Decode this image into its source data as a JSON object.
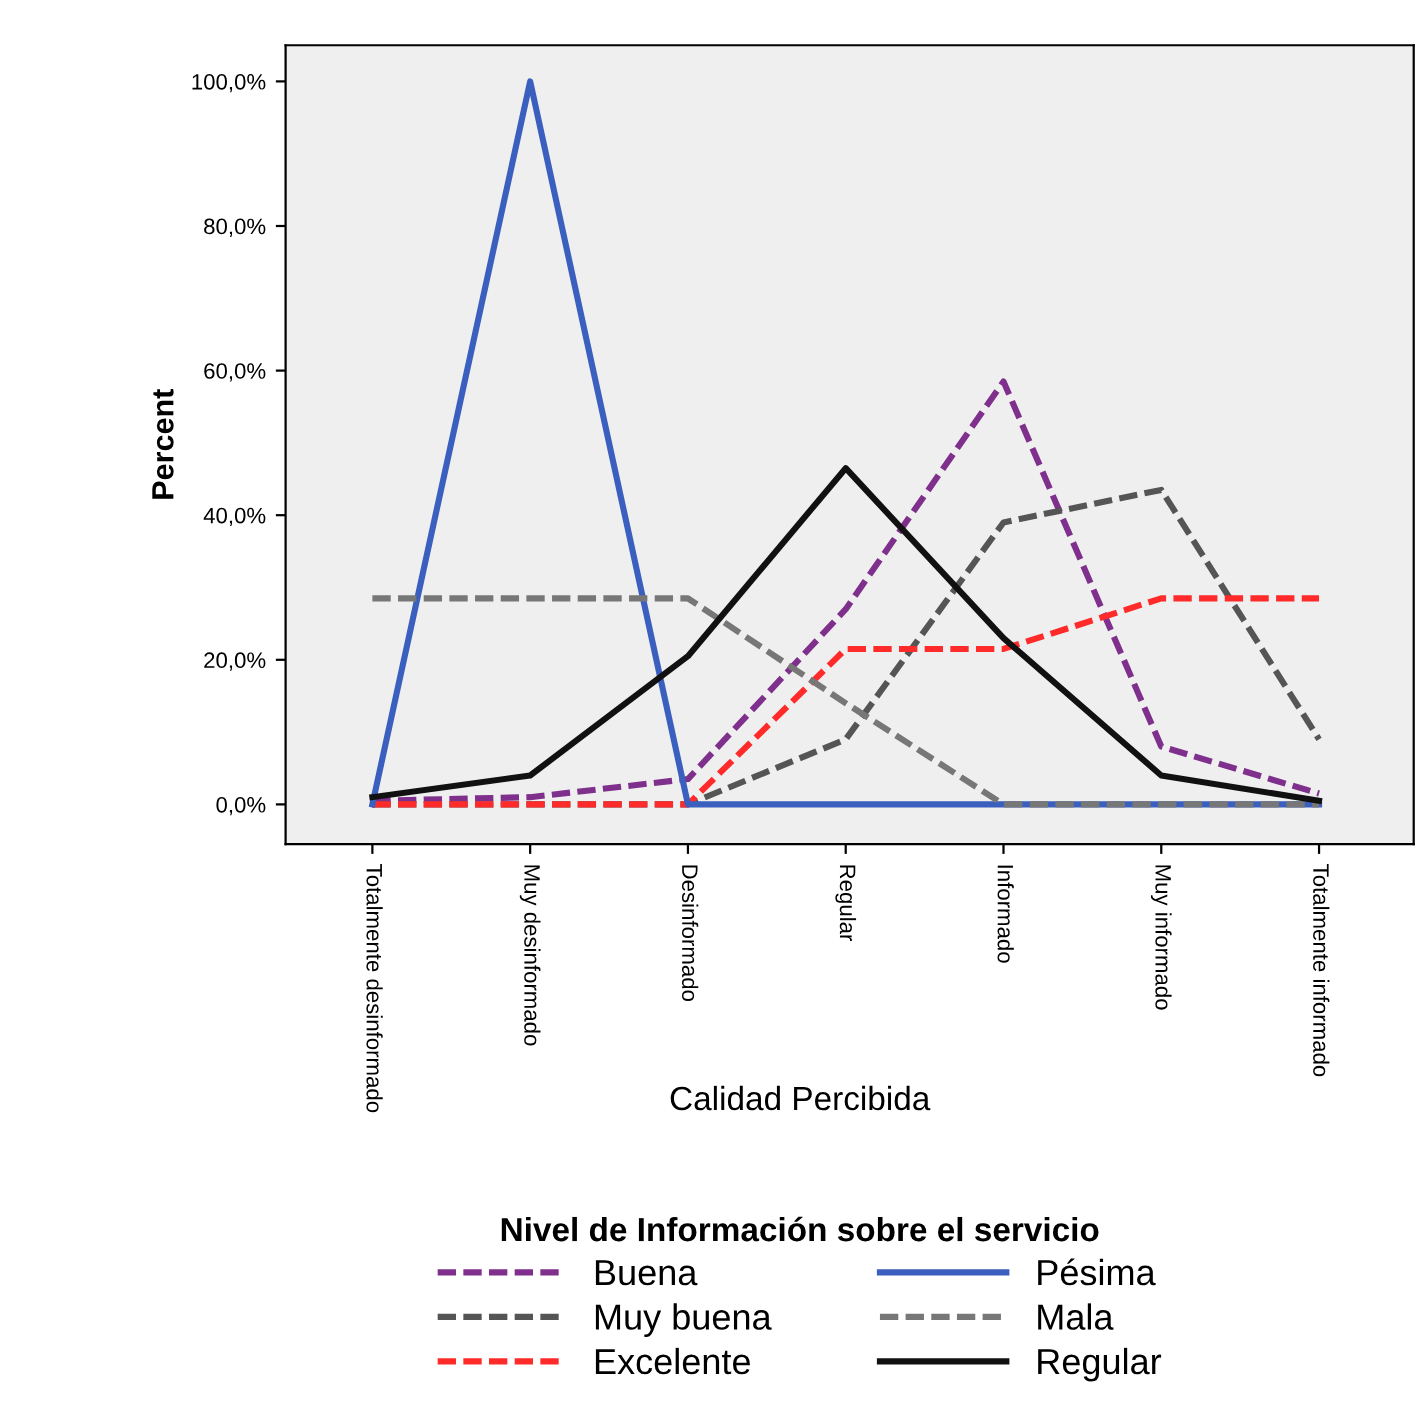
{
  "chart_data": {
    "type": "line",
    "xlabel": "Calidad Percibida",
    "ylabel": "Percent",
    "legend_title": "Nivel de Información sobre el servicio",
    "categories": [
      "Totalmente desinformado",
      "Muy desinformado",
      "Desinformado",
      "Regular",
      "Informado",
      "Muy informado",
      "Totalmente informado"
    ],
    "series": [
      {
        "name": "Buena",
        "color": "#7f2f8c",
        "line_style": "dashed",
        "values": [
          0.5,
          1,
          3.5,
          27,
          58.5,
          8,
          1.5
        ]
      },
      {
        "name": "Muy buena",
        "color": "#555555",
        "line_style": "dashed",
        "values": [
          0,
          0,
          0,
          9,
          39,
          43.5,
          9
        ]
      },
      {
        "name": "Excelente",
        "color": "#ff2a2a",
        "line_style": "dashed",
        "values": [
          0,
          0,
          0,
          21.5,
          21.5,
          28.5,
          28.5
        ]
      },
      {
        "name": "Pésima",
        "color": "#3a5fbf",
        "line_style": "solid",
        "values": [
          0,
          100,
          0,
          0,
          0,
          0,
          0
        ]
      },
      {
        "name": "Mala",
        "color": "#777777",
        "line_style": "dashed",
        "values": [
          28.5,
          28.5,
          28.5,
          14,
          0,
          0,
          0
        ]
      },
      {
        "name": "Regular",
        "color": "#111111",
        "line_style": "solid",
        "values": [
          1,
          4,
          20.5,
          46.5,
          23,
          4,
          0.5
        ]
      }
    ],
    "ylim": [
      -5.5,
      105
    ],
    "yticks": [
      {
        "value": 0,
        "label": "0,0%"
      },
      {
        "value": 20,
        "label": "20,0%"
      },
      {
        "value": 40,
        "label": "40,0%"
      },
      {
        "value": 60,
        "label": "60,0%"
      },
      {
        "value": 80,
        "label": "80,0%"
      },
      {
        "value": 100,
        "label": "100,0%"
      }
    ],
    "grid": false,
    "legend": "bottom",
    "marker": "none"
  }
}
